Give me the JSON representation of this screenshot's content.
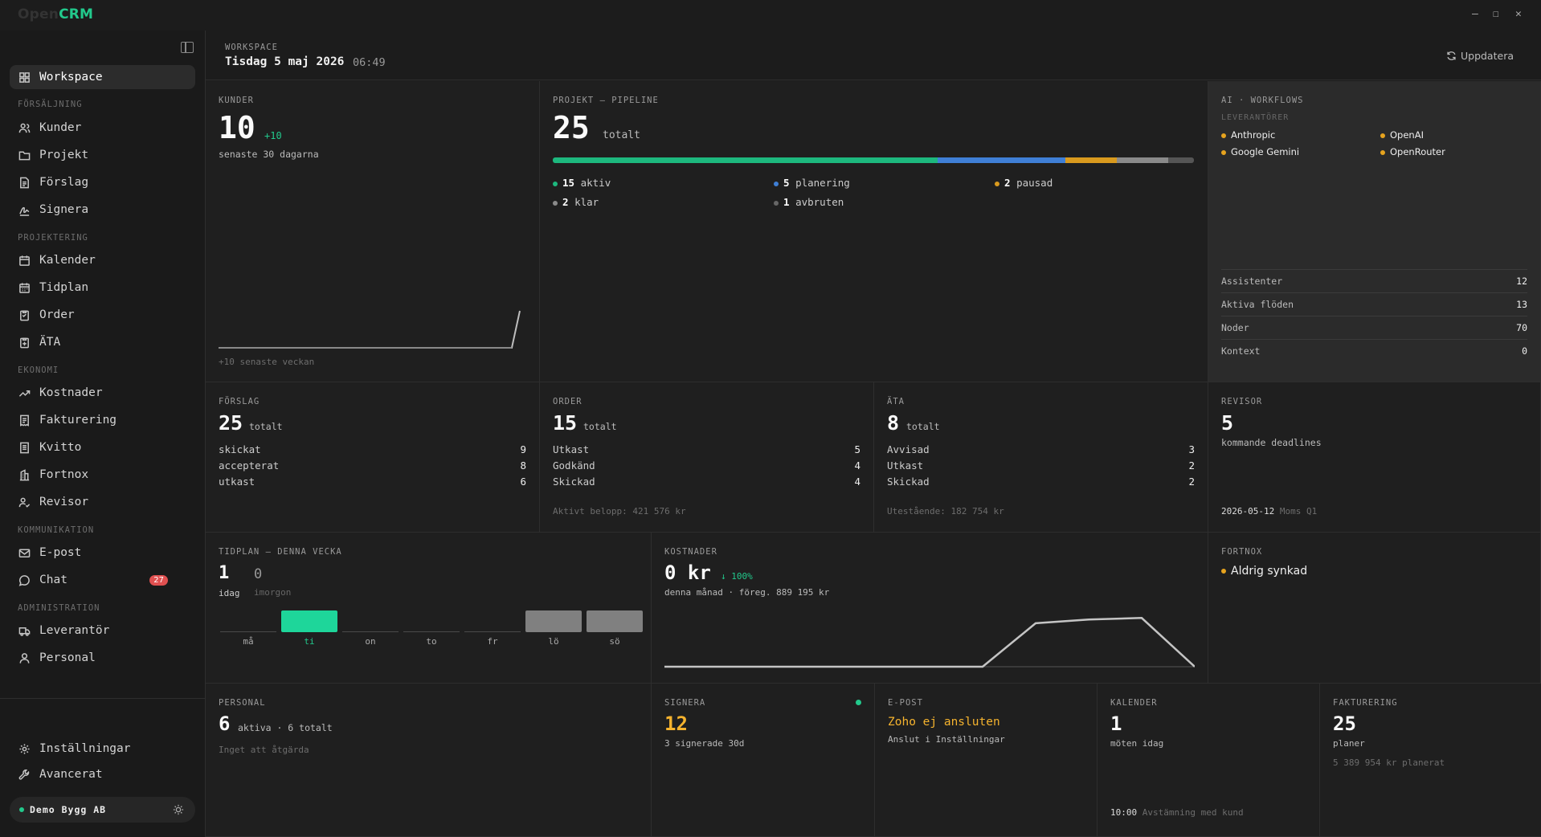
{
  "app": {
    "logo_open": "Open",
    "logo_crm": "CRM"
  },
  "window": {
    "minimize": "—",
    "maximize": "☐",
    "close": "✕"
  },
  "sidebar": {
    "workspace": "Workspace",
    "sections": {
      "forsaljning": "FÖRSÄLJNING",
      "projektering": "PROJEKTERING",
      "ekonomi": "EKONOMI",
      "kommunikation": "KOMMUNIKATION",
      "administration": "ADMINISTRATION"
    },
    "items": {
      "kunder": "Kunder",
      "projekt": "Projekt",
      "forslag": "Förslag",
      "signera": "Signera",
      "kalender": "Kalender",
      "tidplan": "Tidplan",
      "order": "Order",
      "ata": "ÄTA",
      "kostnader": "Kostnader",
      "fakturering": "Fakturering",
      "kvitto": "Kvitto",
      "fortnox": "Fortnox",
      "revisor": "Revisor",
      "epost": "E-post",
      "chat": "Chat",
      "leverantor": "Leverantör",
      "personal": "Personal"
    },
    "chat_badge": "27",
    "installningar": "Inställningar",
    "avancerat": "Avancerat",
    "org": "Demo Bygg AB"
  },
  "header": {
    "label": "WORKSPACE",
    "date": "Tisdag 5 maj 2026",
    "time": "06:49",
    "refresh": "Uppdatera"
  },
  "kunder": {
    "title": "KUNDER",
    "value": "10",
    "delta": "+10",
    "sub": "senaste 30 dagarna",
    "foot": "+10 senaste veckan"
  },
  "pipeline": {
    "title": "PROJEKT — PIPELINE",
    "value": "25",
    "unit": "totalt",
    "segments": [
      {
        "name": "aktiv",
        "count": 15,
        "color": "#1db87e",
        "shown": "15"
      },
      {
        "name": "planering",
        "count": 5,
        "color": "#3f7fd6",
        "shown": "5"
      },
      {
        "name": "pausad",
        "count": 2,
        "color": "#d99a1e",
        "shown": "2"
      },
      {
        "name": "klar",
        "count": 2,
        "color": "#8a8a8a",
        "shown": "2"
      },
      {
        "name": "avbruten",
        "count": 1,
        "color": "#555555",
        "shown": "1"
      }
    ]
  },
  "ai": {
    "title": "AI · WORKFLOWS",
    "providers_label": "LEVERANTÖRER",
    "providers": [
      "Anthropic",
      "OpenAI",
      "Google Gemini",
      "OpenRouter"
    ],
    "stats": [
      {
        "label": "Assistenter",
        "value": "12"
      },
      {
        "label": "Aktiva flöden",
        "value": "13"
      },
      {
        "label": "Noder",
        "value": "70"
      },
      {
        "label": "Kontext",
        "value": "0"
      }
    ]
  },
  "forslag": {
    "title": "FÖRSLAG",
    "value": "25",
    "unit": "totalt",
    "rows": [
      {
        "label": "skickat",
        "value": "9"
      },
      {
        "label": "accepterat",
        "value": "8"
      },
      {
        "label": "utkast",
        "value": "6"
      }
    ]
  },
  "order": {
    "title": "ORDER",
    "value": "15",
    "unit": "totalt",
    "rows": [
      {
        "label": "Utkast",
        "value": "5"
      },
      {
        "label": "Godkänd",
        "value": "4"
      },
      {
        "label": "Skickad",
        "value": "4"
      }
    ],
    "foot": "Aktivt belopp: 421 576 kr"
  },
  "ata": {
    "title": "ÄTA",
    "value": "8",
    "unit": "totalt",
    "rows": [
      {
        "label": "Avvisad",
        "value": "3"
      },
      {
        "label": "Utkast",
        "value": "2"
      },
      {
        "label": "Skickad",
        "value": "2"
      }
    ],
    "foot": "Utestående: 182 754 kr"
  },
  "revisor": {
    "title": "REVISOR",
    "value": "5",
    "sub": "kommande deadlines",
    "deadline_date": "2026-05-12",
    "deadline_label": "Moms Q1"
  },
  "tidplan": {
    "title": "TIDPLAN — DENNA VECKA",
    "today_value": "1",
    "today_label": "idag",
    "tomorrow_value": "0",
    "tomorrow_label": "imorgon",
    "days": [
      {
        "label": "må",
        "state": "empty"
      },
      {
        "label": "ti",
        "state": "today"
      },
      {
        "label": "on",
        "state": "empty"
      },
      {
        "label": "to",
        "state": "empty"
      },
      {
        "label": "fr",
        "state": "empty"
      },
      {
        "label": "lö",
        "state": "weekend"
      },
      {
        "label": "sö",
        "state": "weekend"
      }
    ]
  },
  "kostnader": {
    "title": "KOSTNADER",
    "value": "0 kr",
    "delta": "↓ 100%",
    "sub": "denna månad · föreg. 889 195 kr",
    "chart_data": {
      "type": "line",
      "values": [
        0,
        0,
        0,
        0,
        0,
        0,
        0,
        82,
        89,
        92,
        0
      ]
    }
  },
  "fortnox": {
    "title": "FORTNOX",
    "status": "Aldrig synkad"
  },
  "personal": {
    "title": "PERSONAL",
    "value": "6",
    "sub": "aktiva · 6 totalt",
    "note": "Inget att åtgärda"
  },
  "signera": {
    "title": "SIGNERA",
    "value": "12",
    "sub": "3 signerade 30d"
  },
  "epost": {
    "title": "E-POST",
    "status": "Zoho ej ansluten",
    "sub": "Anslut i Inställningar"
  },
  "kalender": {
    "title": "KALENDER",
    "value": "1",
    "sub": "möten idag",
    "event_time": "10:00",
    "event_name": "Avstämning med kund"
  },
  "fakturering": {
    "title": "FAKTURERING",
    "value": "25",
    "sub": "planer",
    "note": "5 389 954 kr planerat"
  }
}
